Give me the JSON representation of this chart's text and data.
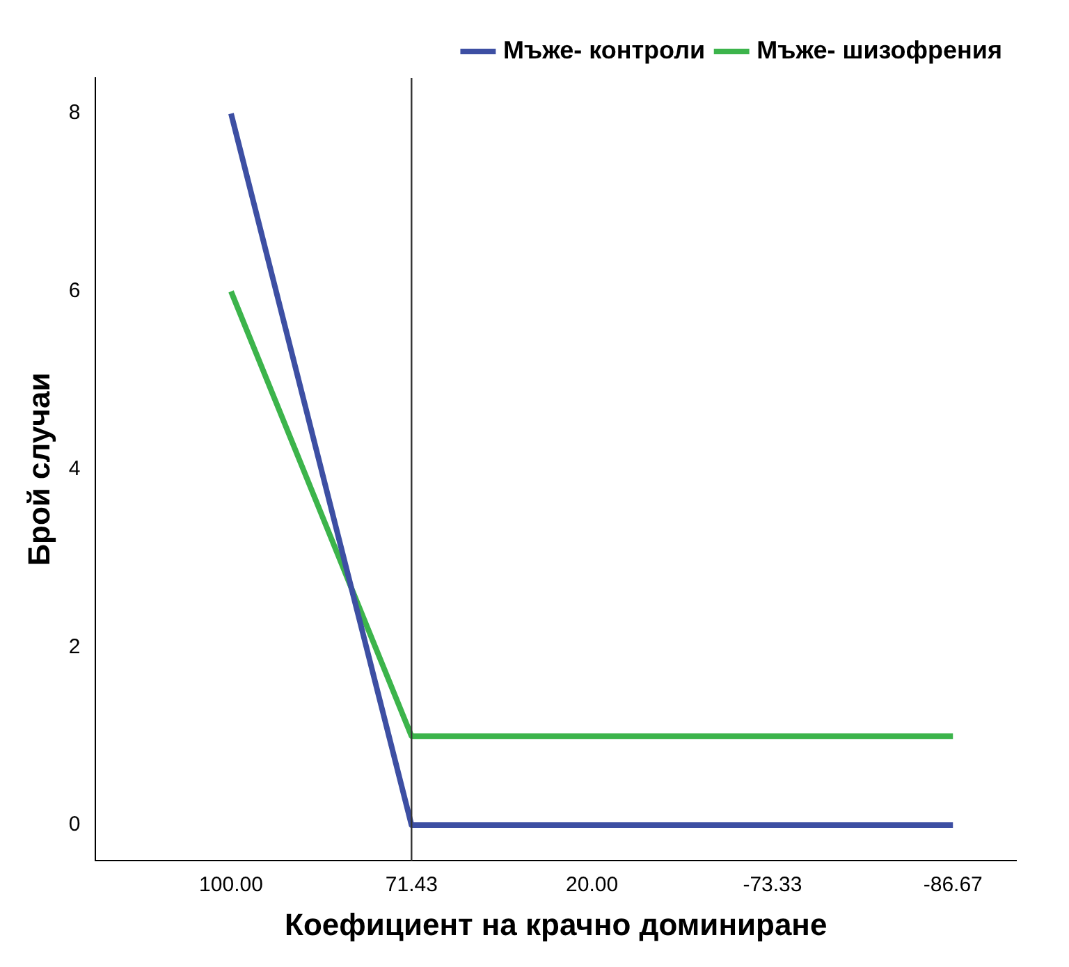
{
  "chart_data": {
    "type": "line",
    "xlabel": "Коефициент на крачно доминиране",
    "ylabel": "Брой случаи",
    "categories": [
      "100.00",
      "71.43",
      "20.00",
      "-73.33",
      "-86.67"
    ],
    "series": [
      {
        "name": "Мъже- контроли",
        "color": "#3d4fa3",
        "values": [
          8,
          0,
          0,
          0,
          0
        ]
      },
      {
        "name": "Мъже- шизофрения",
        "color": "#3cb44b",
        "values": [
          6,
          1,
          1,
          1,
          1
        ]
      }
    ],
    "ylim": [
      -0.4,
      8.4
    ],
    "yticks": [
      0,
      2,
      4,
      6,
      8
    ],
    "ref_lines": [
      {
        "axis": "x",
        "value": "71.43",
        "color": "#333333"
      }
    ],
    "grid": false,
    "legend": "top right",
    "marker": "none",
    "line_style": "solid"
  }
}
